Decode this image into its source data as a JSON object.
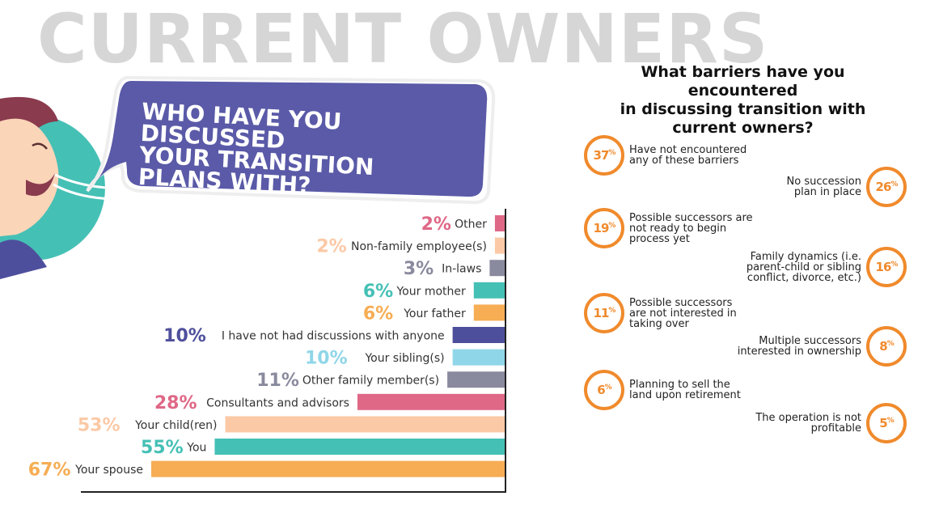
{
  "page_title": "CURRENT OWNERS",
  "bubble_title": "WHO HAVE YOU DISCUSSED\nYOUR TRANSITION\nPLANS WITH?",
  "colors": {
    "bubble": "#5a5aa8",
    "orange": "#f08a2c",
    "teal": "#45c0b5",
    "navy": "#4e4f9c",
    "pink": "#df6886",
    "peach": "#fbc9a6",
    "gray": "#8a8a9e",
    "lightblue": "#8fd6e8",
    "amber": "#f6ad54"
  },
  "chart_data": {
    "type": "bar",
    "orientation": "horizontal",
    "categories": [
      "Other",
      "Non-family employee(s)",
      "In-laws",
      "Your mother",
      "Your father",
      "I have not had discussions with anyone",
      "Your sibling(s)",
      "Other family member(s)",
      "Consultants and advisors",
      "Your child(ren)",
      "You",
      "Your spouse"
    ],
    "values": [
      2,
      2,
      3,
      6,
      6,
      10,
      10,
      11,
      28,
      53,
      55,
      67
    ],
    "value_labels": [
      "2%",
      "2%",
      "3%",
      "6%",
      "6%",
      "10%",
      "10%",
      "11%",
      "28%",
      "53%",
      "55%",
      "67%"
    ],
    "bar_colors": [
      "#df6886",
      "#fbc9a6",
      "#8a8a9e",
      "#45c0b5",
      "#f6ad54",
      "#4e4f9c",
      "#8fd6e8",
      "#8a8a9e",
      "#df6886",
      "#fbc9a6",
      "#45c0b5",
      "#f6ad54"
    ],
    "xlim": [
      0,
      67
    ],
    "grid": false,
    "legend": "none"
  },
  "barriers": {
    "question": "What barriers have you encountered\nin discussing transition with\ncurrent owners?",
    "items": [
      {
        "value": "37",
        "text": "Have not encountered\nany of these barriers",
        "side": "left"
      },
      {
        "value": "26",
        "text": "No succession\nplan in place",
        "side": "right"
      },
      {
        "value": "19",
        "text": "Possible successors are\nnot ready to begin\nprocess yet",
        "side": "left"
      },
      {
        "value": "16",
        "text": "Family dynamics (i.e.\nparent-child or sibling\nconflict, divorce, etc.)",
        "side": "right"
      },
      {
        "value": "11",
        "text": "Possible successors\nare not interested in\ntaking over",
        "side": "left"
      },
      {
        "value": "8",
        "text": "Multiple successors\ninterested in ownership",
        "side": "right"
      },
      {
        "value": "6",
        "text": "Planning to sell the\nland upon retirement",
        "side": "left"
      },
      {
        "value": "5",
        "text": "The operation is not\nprofitable",
        "side": "right"
      }
    ],
    "percent_sign": "%"
  }
}
